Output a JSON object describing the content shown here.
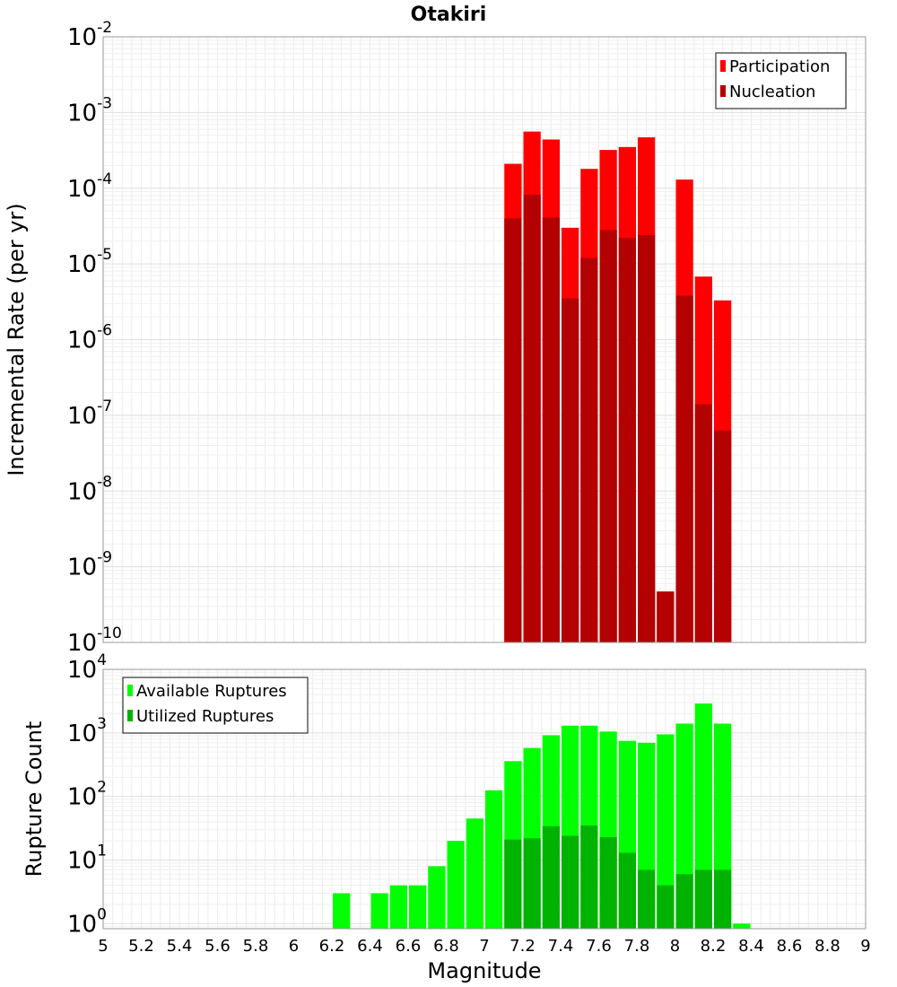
{
  "chart_data": [
    {
      "type": "bar",
      "title": "Otakiri",
      "xlabel": "",
      "ylabel": "Incremental Rate (per yr)",
      "y_scale": "log",
      "ylim_exponents": [
        -10,
        -2
      ],
      "xlim": [
        5,
        9
      ],
      "bar_width": 0.1,
      "grid": true,
      "legend_position": "top-right",
      "x": [
        7.15,
        7.25,
        7.35,
        7.45,
        7.55,
        7.65,
        7.75,
        7.85,
        7.95,
        8.05,
        8.15,
        8.25
      ],
      "series": [
        {
          "name": "Participation",
          "color": "#ff0000",
          "values": [
            0.00021,
            0.00056,
            0.00044,
            3e-05,
            0.00018,
            0.00032,
            0.00035,
            0.00047,
            4.7e-10,
            0.00013,
            6.8e-06,
            3.3e-06
          ]
        },
        {
          "name": "Nucleation",
          "color": "#b30000",
          "values": [
            4e-05,
            8.2e-05,
            4.1e-05,
            3.5e-06,
            1.2e-05,
            2.8e-05,
            2.2e-05,
            2.4e-05,
            4.7e-10,
            3.8e-06,
            1.4e-07,
            6.3e-08
          ]
        }
      ]
    },
    {
      "type": "bar",
      "title": "",
      "xlabel": "Magnitude",
      "ylabel": "Rupture Count",
      "y_scale": "log",
      "ylim_exponents": [
        -0.08,
        4
      ],
      "xlim": [
        5,
        9
      ],
      "bar_width": 0.1,
      "grid": true,
      "legend_position": "top-left",
      "x": [
        6.25,
        6.45,
        6.55,
        6.65,
        6.75,
        6.85,
        6.95,
        7.05,
        7.15,
        7.25,
        7.35,
        7.45,
        7.55,
        7.65,
        7.75,
        7.85,
        7.95,
        8.05,
        8.15,
        8.25,
        8.35
      ],
      "series": [
        {
          "name": "Available Ruptures",
          "color": "#00ff00",
          "values": [
            3,
            3,
            4,
            4,
            8,
            20,
            45,
            125,
            360,
            580,
            920,
            1300,
            1300,
            1050,
            750,
            700,
            950,
            1400,
            2900,
            1400,
            1
          ]
        },
        {
          "name": "Utilized Ruptures",
          "color": "#00b300",
          "values": [
            0,
            0,
            0,
            0,
            0,
            0,
            0,
            0,
            21,
            22,
            34,
            24,
            35,
            23,
            13,
            7,
            4,
            6,
            7,
            7,
            0
          ]
        }
      ],
      "x_ticks": [
        "5",
        "5.2",
        "5.4",
        "5.6",
        "5.8",
        "6",
        "6.2",
        "6.4",
        "6.6",
        "6.8",
        "7",
        "7.2",
        "7.4",
        "7.6",
        "7.8",
        "8",
        "8.2",
        "8.4",
        "8.6",
        "8.8",
        "9"
      ]
    }
  ]
}
